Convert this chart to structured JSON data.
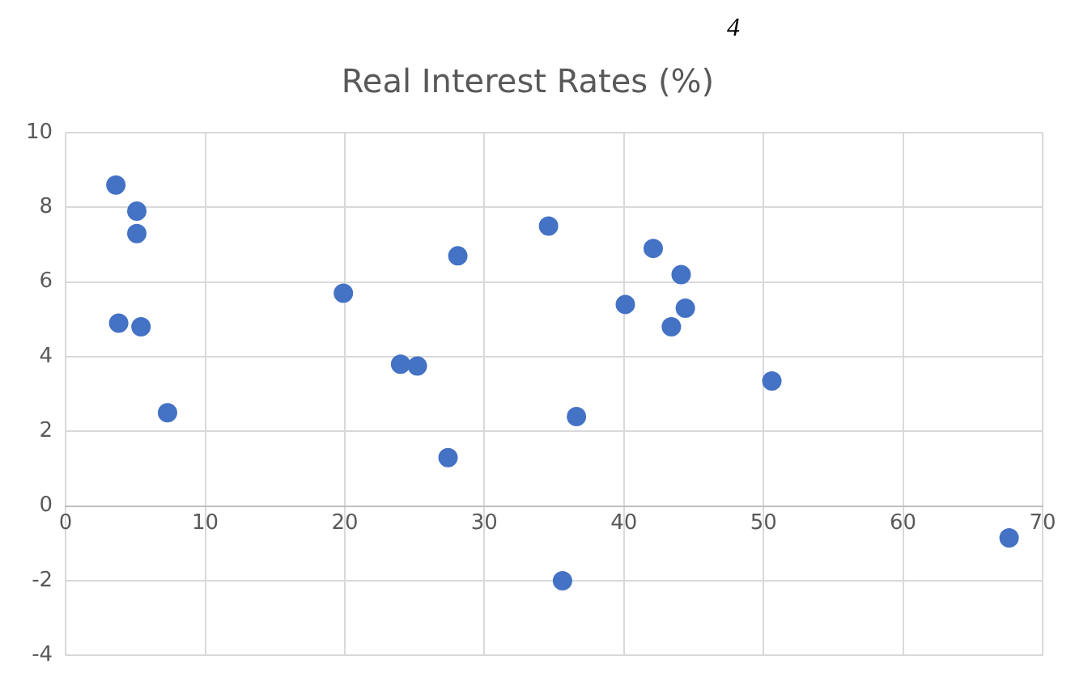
{
  "chart_data": {
    "type": "scatter",
    "title": "Real Interest Rates (%)",
    "annotations": [
      "4"
    ],
    "series": [
      {
        "color": "#4472c4",
        "x": [
          3.6,
          5.1,
          5.1,
          3.8,
          5.4,
          7.3,
          19.9,
          24.0,
          25.2,
          27.4,
          28.1,
          34.6,
          36.6,
          35.6,
          40.1,
          42.1,
          44.1,
          44.4,
          43.4,
          50.6,
          67.6
        ],
        "values": [
          8.6,
          7.9,
          7.3,
          4.9,
          4.8,
          2.5,
          5.7,
          3.8,
          3.75,
          1.3,
          6.7,
          7.5,
          2.4,
          -2.0,
          5.4,
          6.9,
          6.2,
          5.3,
          4.8,
          3.35,
          -0.85
        ]
      }
    ],
    "xlim": [
      0,
      70
    ],
    "xticks": [
      0,
      10,
      20,
      30,
      40,
      50,
      60,
      70
    ],
    "ylim": [
      -4,
      10
    ],
    "yticks": [
      -4,
      -2,
      0,
      2,
      4,
      6,
      8,
      10
    ],
    "grid": true,
    "legend": false,
    "marker": "circle"
  }
}
